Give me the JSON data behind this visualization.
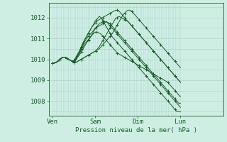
{
  "background_color": "#ceeee4",
  "plot_bg_color": "#ceeee4",
  "grid_color_v": "#b8ddd4",
  "grid_color_h": "#b0ccc4",
  "line_color": "#1a5c28",
  "marker_color": "#1a5c28",
  "xlabel": "Pression niveau de la mer( hPa )",
  "yticks": [
    1008,
    1009,
    1010,
    1011,
    1012
  ],
  "xtick_labels": [
    "Ven",
    "Sam",
    "Dim",
    "Lun"
  ],
  "xtick_positions": [
    0,
    24,
    48,
    72
  ],
  "xlim": [
    -2,
    96
  ],
  "ylim": [
    1007.3,
    1012.7
  ],
  "series": [
    [
      1009.8,
      1009.82,
      1009.85,
      1009.9,
      1010.0,
      1010.05,
      1010.1,
      1010.1,
      1010.05,
      1010.0,
      1009.95,
      1009.9,
      1009.9,
      1010.0,
      1010.15,
      1010.3,
      1010.45,
      1010.6,
      1010.75,
      1010.85,
      1010.95,
      1011.05,
      1011.15,
      1011.25,
      1011.3,
      1011.3,
      1011.25,
      1011.2,
      1011.1,
      1011.0,
      1010.9,
      1010.8,
      1010.7,
      1010.6,
      1010.5,
      1010.4,
      1010.3,
      1010.25,
      1010.2,
      1010.15,
      1010.1,
      1010.05,
      1010.0,
      1009.95,
      1009.9,
      1009.85,
      1009.8,
      1009.75,
      1009.7,
      1009.65,
      1009.6,
      1009.55,
      1009.5,
      1009.45,
      1009.4,
      1009.35,
      1009.3,
      1009.25,
      1009.2,
      1009.15,
      1009.1,
      1009.05,
      1009.0,
      1008.95,
      1008.9,
      1008.8,
      1008.7,
      1008.6,
      1008.5,
      1008.4,
      1008.3,
      1008.2
    ],
    [
      1009.8,
      1009.82,
      1009.85,
      1009.9,
      1010.0,
      1010.05,
      1010.1,
      1010.1,
      1010.05,
      1010.0,
      1009.95,
      1009.9,
      1009.9,
      1010.0,
      1010.15,
      1010.3,
      1010.5,
      1010.7,
      1010.85,
      1011.0,
      1011.1,
      1011.2,
      1011.3,
      1011.4,
      1011.5,
      1011.55,
      1011.6,
      1011.65,
      1011.7,
      1011.75,
      1011.8,
      1011.7,
      1011.6,
      1011.5,
      1011.4,
      1011.3,
      1011.2,
      1011.1,
      1011.0,
      1010.9,
      1010.8,
      1010.7,
      1010.6,
      1010.5,
      1010.4,
      1010.3,
      1010.2,
      1010.1,
      1010.0,
      1009.9,
      1009.8,
      1009.7,
      1009.6,
      1009.5,
      1009.4,
      1009.3,
      1009.2,
      1009.1,
      1009.0,
      1008.9,
      1008.8,
      1008.7,
      1008.6,
      1008.5,
      1008.4,
      1008.3,
      1008.2,
      1008.1,
      1008.0,
      1007.9,
      1007.8,
      1007.7
    ],
    [
      1009.8,
      1009.82,
      1009.85,
      1009.9,
      1010.0,
      1010.05,
      1010.1,
      1010.1,
      1010.05,
      1010.0,
      1009.95,
      1009.9,
      1009.95,
      1010.05,
      1010.2,
      1010.35,
      1010.55,
      1010.75,
      1010.95,
      1011.1,
      1011.25,
      1011.4,
      1011.55,
      1011.7,
      1011.85,
      1011.95,
      1012.05,
      1012.0,
      1011.85,
      1011.7,
      1011.55,
      1011.4,
      1011.25,
      1011.1,
      1011.0,
      1010.9,
      1010.8,
      1010.7,
      1010.6,
      1010.5,
      1010.4,
      1010.3,
      1010.2,
      1010.1,
      1010.0,
      1009.9,
      1009.8,
      1009.7,
      1009.6,
      1009.5,
      1009.4,
      1009.3,
      1009.2,
      1009.1,
      1009.0,
      1008.9,
      1008.8,
      1008.7,
      1008.6,
      1008.5,
      1008.4,
      1008.3,
      1008.2,
      1008.1,
      1008.0,
      1007.9,
      1007.8,
      1007.7,
      1007.6,
      1007.5,
      1007.5,
      1007.5
    ],
    [
      1009.8,
      1009.82,
      1009.85,
      1009.9,
      1010.0,
      1010.05,
      1010.1,
      1010.1,
      1010.05,
      1010.0,
      1009.95,
      1009.9,
      1009.95,
      1010.1,
      1010.25,
      1010.4,
      1010.6,
      1010.8,
      1010.95,
      1011.1,
      1011.25,
      1011.4,
      1011.55,
      1011.65,
      1011.75,
      1011.85,
      1011.9,
      1011.95,
      1012.0,
      1012.05,
      1012.1,
      1012.15,
      1012.2,
      1012.25,
      1012.3,
      1012.35,
      1012.35,
      1012.3,
      1012.2,
      1012.1,
      1012.0,
      1011.9,
      1011.8,
      1011.7,
      1011.6,
      1011.5,
      1011.4,
      1011.3,
      1011.2,
      1011.1,
      1011.0,
      1010.9,
      1010.8,
      1010.7,
      1010.6,
      1010.5,
      1010.4,
      1010.3,
      1010.2,
      1010.1,
      1010.0,
      1009.9,
      1009.8,
      1009.7,
      1009.6,
      1009.5,
      1009.4,
      1009.3,
      1009.2,
      1009.1,
      1009.0,
      1008.9
    ],
    [
      1009.8,
      1009.82,
      1009.85,
      1009.9,
      1010.0,
      1010.05,
      1010.1,
      1010.1,
      1010.05,
      1010.0,
      1009.95,
      1009.9,
      1009.85,
      1009.95,
      1010.1,
      1010.2,
      1010.35,
      1010.5,
      1010.65,
      1010.8,
      1010.9,
      1011.05,
      1011.2,
      1011.35,
      1011.5,
      1011.6,
      1011.7,
      1011.75,
      1011.8,
      1011.8,
      1011.8,
      1011.75,
      1011.7,
      1011.6,
      1011.5,
      1011.4,
      1011.3,
      1011.2,
      1011.1,
      1011.0,
      1010.9,
      1010.8,
      1010.7,
      1010.6,
      1010.5,
      1010.4,
      1010.3,
      1010.2,
      1010.1,
      1010.0,
      1009.9,
      1009.8,
      1009.7,
      1009.6,
      1009.5,
      1009.4,
      1009.3,
      1009.2,
      1009.1,
      1009.0,
      1008.9,
      1008.8,
      1008.7,
      1008.6,
      1008.5,
      1008.4,
      1008.3,
      1008.2,
      1008.1,
      1008.0,
      1007.9,
      1007.9
    ],
    [
      1009.8,
      1009.82,
      1009.85,
      1009.9,
      1010.0,
      1010.05,
      1010.1,
      1010.1,
      1010.05,
      1010.0,
      1009.95,
      1009.9,
      1009.85,
      1009.85,
      1009.9,
      1009.95,
      1010.0,
      1010.05,
      1010.1,
      1010.15,
      1010.2,
      1010.25,
      1010.3,
      1010.35,
      1010.4,
      1010.45,
      1010.5,
      1010.6,
      1010.7,
      1010.8,
      1010.9,
      1011.0,
      1011.1,
      1011.2,
      1011.35,
      1011.5,
      1011.65,
      1011.8,
      1011.95,
      1012.1,
      1012.2,
      1012.3,
      1012.35,
      1012.35,
      1012.3,
      1012.2,
      1012.1,
      1012.0,
      1011.9,
      1011.8,
      1011.7,
      1011.6,
      1011.5,
      1011.4,
      1011.3,
      1011.2,
      1011.1,
      1011.0,
      1010.9,
      1010.8,
      1010.7,
      1010.6,
      1010.5,
      1010.4,
      1010.3,
      1010.2,
      1010.1,
      1010.0,
      1009.9,
      1009.8,
      1009.7,
      1009.6
    ],
    [
      1009.8,
      1009.82,
      1009.85,
      1009.9,
      1010.0,
      1010.05,
      1010.1,
      1010.1,
      1010.05,
      1010.0,
      1009.95,
      1009.9,
      1009.85,
      1009.85,
      1009.9,
      1009.95,
      1010.0,
      1010.05,
      1010.1,
      1010.15,
      1010.2,
      1010.25,
      1010.3,
      1010.35,
      1010.4,
      1010.5,
      1010.6,
      1010.75,
      1010.9,
      1011.05,
      1011.2,
      1011.35,
      1011.5,
      1011.65,
      1011.8,
      1011.95,
      1012.0,
      1012.05,
      1012.0,
      1011.95,
      1011.9,
      1011.85,
      1011.8,
      1011.7,
      1011.6,
      1011.5,
      1011.4,
      1011.3,
      1011.2,
      1011.1,
      1011.0,
      1010.9,
      1010.8,
      1010.7,
      1010.6,
      1010.5,
      1010.4,
      1010.3,
      1010.2,
      1010.1,
      1010.0,
      1009.9,
      1009.8,
      1009.7,
      1009.6,
      1009.5,
      1009.4,
      1009.3,
      1009.2,
      1009.1,
      1009.0,
      1008.9
    ]
  ]
}
